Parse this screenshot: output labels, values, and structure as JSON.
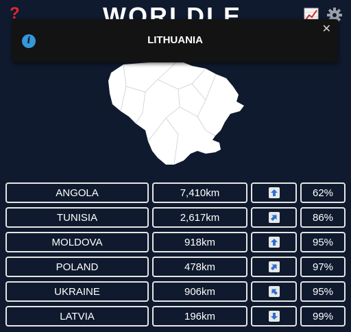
{
  "header": {
    "logo_text": "WORLDLE",
    "help_icon": "?",
    "stats_icon": "chart-icon",
    "settings_icon": "gear-icon"
  },
  "toast": {
    "message": "LITHUANIA",
    "info_icon": "i",
    "close_icon": "✕"
  },
  "map": {
    "country_shape": "lithuania-outline"
  },
  "colors": {
    "background": "#0f1a2e",
    "border": "#e6e6e6",
    "toast_bg": "#131313",
    "info_blue": "#3498db",
    "arrow_blue": "#2f6fd0"
  },
  "guesses": [
    {
      "country": "ANGOLA",
      "distance": "7,410km",
      "direction": "north",
      "proximity": "62%"
    },
    {
      "country": "TUNISIA",
      "distance": "2,617km",
      "direction": "northeast",
      "proximity": "86%"
    },
    {
      "country": "MOLDOVA",
      "distance": "918km",
      "direction": "north",
      "proximity": "95%"
    },
    {
      "country": "POLAND",
      "distance": "478km",
      "direction": "northeast",
      "proximity": "97%"
    },
    {
      "country": "UKRAINE",
      "distance": "906km",
      "direction": "northwest",
      "proximity": "95%"
    },
    {
      "country": "LATVIA",
      "distance": "196km",
      "direction": "south",
      "proximity": "99%"
    }
  ]
}
